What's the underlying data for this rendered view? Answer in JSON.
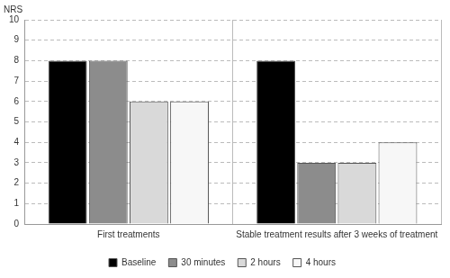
{
  "chart_data": {
    "type": "bar",
    "y_label": "NRS",
    "categories": [
      "First treatments",
      "Stable treatment results after 3 weeks of treatment"
    ],
    "series": [
      {
        "name": "Baseline",
        "color": "#000000",
        "values": [
          8,
          8
        ]
      },
      {
        "name": "30 minutes",
        "color": "#8c8c8c",
        "values": [
          8,
          3
        ]
      },
      {
        "name": "2 hours",
        "color": "#d9d9d9",
        "values": [
          6,
          3
        ]
      },
      {
        "name": "4 hours",
        "color": "#f7f7f7",
        "values": [
          6,
          4
        ]
      }
    ],
    "ylim": [
      0,
      10
    ],
    "yticks": [
      0,
      1,
      2,
      3,
      4,
      5,
      6,
      7,
      8,
      9,
      10
    ],
    "grid": true,
    "legend": "bottom"
  }
}
